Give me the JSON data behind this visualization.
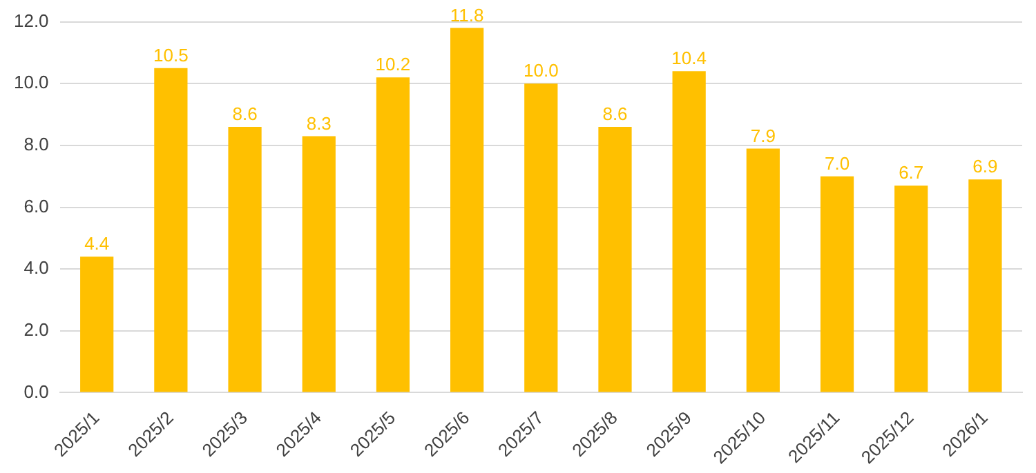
{
  "chart_data": {
    "type": "bar",
    "categories": [
      "2025/1",
      "2025/2",
      "2025/3",
      "2025/4",
      "2025/5",
      "2025/6",
      "2025/7",
      "2025/8",
      "2025/9",
      "2025/10",
      "2025/11",
      "2025/12",
      "2026/1"
    ],
    "values": [
      4.4,
      10.5,
      8.6,
      8.3,
      10.2,
      11.8,
      10.0,
      8.6,
      10.4,
      7.9,
      7.0,
      6.7,
      6.9
    ],
    "value_labels": [
      "4.4",
      "10.5",
      "8.6",
      "8.3",
      "10.2",
      "11.8",
      "10.0",
      "8.6",
      "10.4",
      "7.9",
      "7.0",
      "6.7",
      "6.9"
    ],
    "color": "#ffc000",
    "ylim": [
      0,
      12
    ],
    "yticks": [
      {
        "value": 0,
        "label": "0.0"
      },
      {
        "value": 2,
        "label": "2.0"
      },
      {
        "value": 4,
        "label": "4.0"
      },
      {
        "value": 6,
        "label": "6.0"
      },
      {
        "value": 8,
        "label": "8.0"
      },
      {
        "value": 10,
        "label": "10.0"
      },
      {
        "value": 12,
        "label": "12.0"
      }
    ],
    "grid": "y",
    "legend": false
  }
}
